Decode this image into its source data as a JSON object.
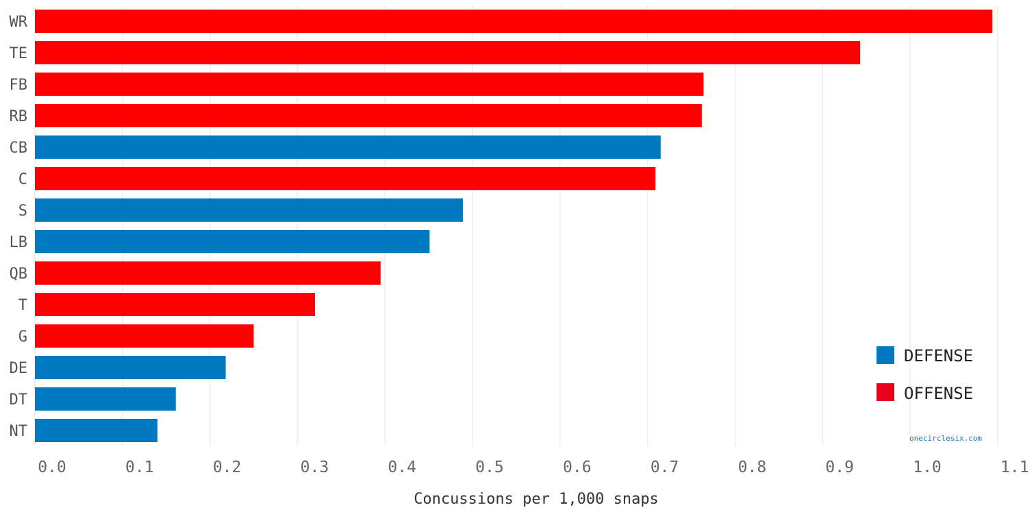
{
  "chart_data": {
    "type": "bar",
    "orientation": "horizontal",
    "categories": [
      "WR",
      "TE",
      "FB",
      "RB",
      "CB",
      "C",
      "S",
      "LB",
      "QB",
      "T",
      "G",
      "DE",
      "DT",
      "NT"
    ],
    "values": [
      1.094,
      0.943,
      0.764,
      0.762,
      0.715,
      0.709,
      0.489,
      0.451,
      0.395,
      0.32,
      0.25,
      0.218,
      0.161,
      0.14
    ],
    "groups": [
      "OFFENSE",
      "OFFENSE",
      "OFFENSE",
      "OFFENSE",
      "DEFENSE",
      "OFFENSE",
      "DEFENSE",
      "DEFENSE",
      "OFFENSE",
      "OFFENSE",
      "OFFENSE",
      "DEFENSE",
      "DEFENSE",
      "DEFENSE"
    ],
    "xlabel": "Concussions per 1,000 snaps",
    "xlim": [
      0,
      1.14
    ],
    "xticks": [
      "0.0",
      "0.1",
      "0.2",
      "0.3",
      "0.4",
      "0.5",
      "0.6",
      "0.7",
      "0.8",
      "0.9",
      "1.0",
      "1.1"
    ],
    "grid": true,
    "legend_position": "bottom-right",
    "legend": [
      {
        "label": "DEFENSE",
        "color": "#0079c1"
      },
      {
        "label": "OFFENSE",
        "color": "#e8001c"
      }
    ],
    "bar_colors": {
      "OFFENSE": "#ff0000",
      "DEFENSE": "#0079c1"
    },
    "credit": "onecirclesix.com"
  }
}
